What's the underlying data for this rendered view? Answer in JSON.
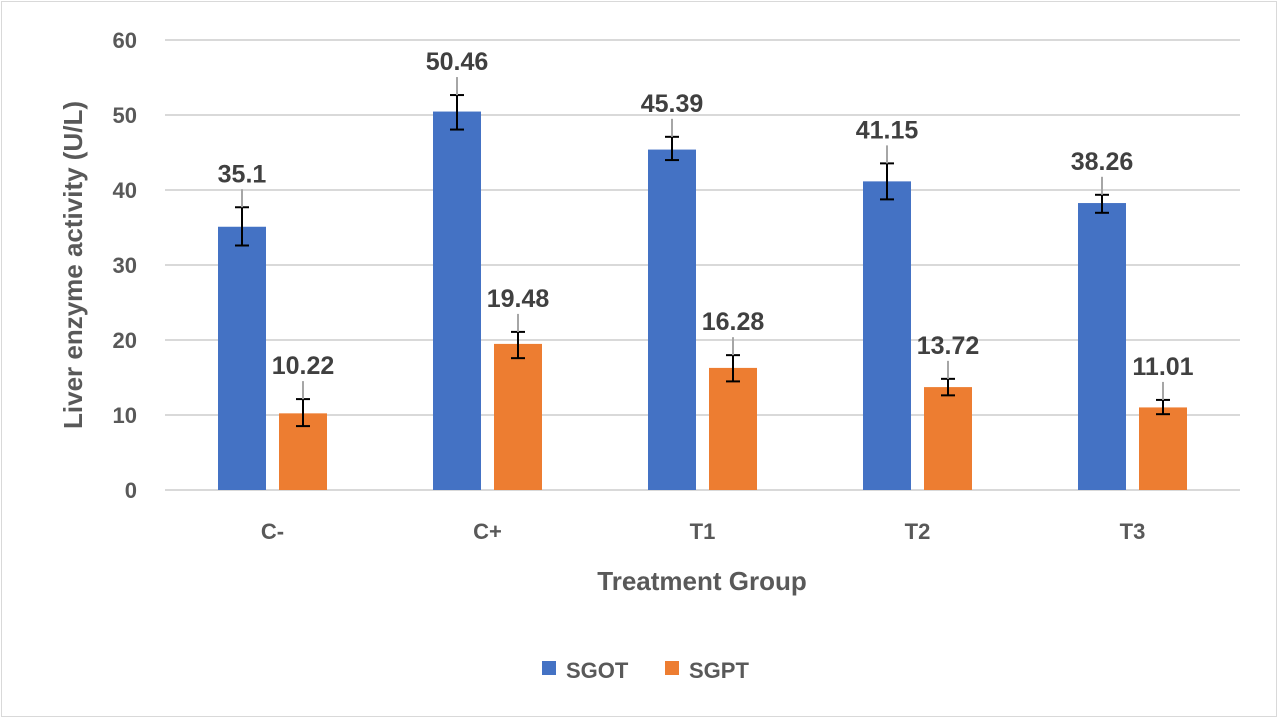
{
  "chart_data": {
    "type": "bar",
    "title": "",
    "xlabel": "Treatment Group",
    "ylabel": "Liver enzyme activity (U/L)",
    "ylim": [
      0,
      60
    ],
    "yticks": [
      "0",
      "10",
      "20",
      "30",
      "40",
      "50",
      "60"
    ],
    "grid": true,
    "legend_position": "bottom",
    "categories": [
      "C-",
      "C+",
      "T1",
      "T2",
      "T3"
    ],
    "series": [
      {
        "name": "SGOT",
        "color": "#4472c4",
        "values": [
          35.1,
          50.46,
          45.39,
          41.15,
          38.26
        ],
        "labels": [
          "35.1",
          "50.46",
          "45.39",
          "41.15",
          "38.26"
        ],
        "error_minus": [
          2.5,
          2.4,
          1.4,
          2.4,
          1.3
        ],
        "error_plus": [
          2.6,
          2.2,
          1.7,
          2.4,
          1.1
        ]
      },
      {
        "name": "SGPT",
        "color": "#ed7d31",
        "values": [
          10.22,
          19.48,
          16.28,
          13.72,
          11.01
        ],
        "labels": [
          "10.22",
          "19.48",
          "16.28",
          "13.72",
          "11.01"
        ],
        "error_minus": [
          1.7,
          1.9,
          1.8,
          1.1,
          0.9
        ],
        "error_plus": [
          1.9,
          1.6,
          1.7,
          1.1,
          1.0
        ]
      }
    ]
  }
}
